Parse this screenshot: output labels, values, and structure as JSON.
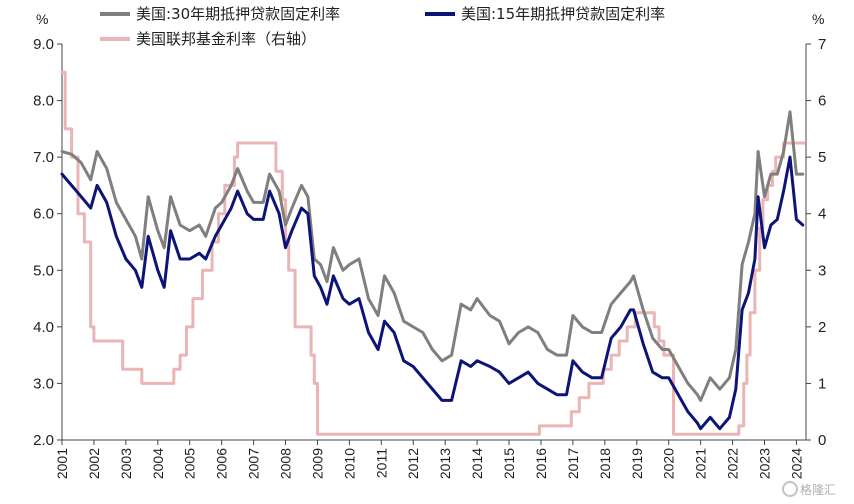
{
  "chart_data": {
    "type": "line",
    "left_unit": "%",
    "right_unit": "%",
    "y_left": {
      "min": 2.0,
      "max": 9.0,
      "ticks": [
        "2.0",
        "3.0",
        "4.0",
        "5.0",
        "6.0",
        "7.0",
        "8.0",
        "9.0"
      ]
    },
    "y_right": {
      "min": 0,
      "max": 7,
      "ticks": [
        "0",
        "1",
        "2",
        "3",
        "4",
        "5",
        "6",
        "7"
      ]
    },
    "x_range": [
      2001.0,
      2024.3
    ],
    "x_ticks": [
      "2001",
      "2002",
      "2003",
      "2004",
      "2005",
      "2006",
      "2007",
      "2008",
      "2009",
      "2010",
      "2011",
      "2012",
      "2013",
      "2014",
      "2015",
      "2016",
      "2017",
      "2018",
      "2019",
      "2020",
      "2021",
      "2022",
      "2023",
      "2024"
    ],
    "legend_placement": "top",
    "series": [
      {
        "name": "美国:30年期抵押贷款固定利率",
        "axis": "left",
        "color": "#7f7f7f",
        "points": [
          [
            2001.0,
            7.1
          ],
          [
            2001.3,
            7.05
          ],
          [
            2001.6,
            6.9
          ],
          [
            2001.9,
            6.6
          ],
          [
            2002.1,
            7.1
          ],
          [
            2002.4,
            6.8
          ],
          [
            2002.7,
            6.2
          ],
          [
            2003.0,
            5.9
          ],
          [
            2003.3,
            5.6
          ],
          [
            2003.5,
            5.2
          ],
          [
            2003.7,
            6.3
          ],
          [
            2004.0,
            5.7
          ],
          [
            2004.2,
            5.4
          ],
          [
            2004.4,
            6.3
          ],
          [
            2004.7,
            5.8
          ],
          [
            2005.0,
            5.7
          ],
          [
            2005.3,
            5.8
          ],
          [
            2005.5,
            5.6
          ],
          [
            2005.8,
            6.1
          ],
          [
            2006.0,
            6.2
          ],
          [
            2006.3,
            6.5
          ],
          [
            2006.5,
            6.8
          ],
          [
            2006.8,
            6.4
          ],
          [
            2007.0,
            6.2
          ],
          [
            2007.3,
            6.2
          ],
          [
            2007.5,
            6.7
          ],
          [
            2007.8,
            6.4
          ],
          [
            2008.0,
            5.8
          ],
          [
            2008.2,
            6.1
          ],
          [
            2008.5,
            6.5
          ],
          [
            2008.7,
            6.3
          ],
          [
            2008.9,
            5.2
          ],
          [
            2009.1,
            5.1
          ],
          [
            2009.3,
            4.8
          ],
          [
            2009.5,
            5.4
          ],
          [
            2009.8,
            5.0
          ],
          [
            2010.0,
            5.1
          ],
          [
            2010.3,
            5.2
          ],
          [
            2010.6,
            4.5
          ],
          [
            2010.9,
            4.2
          ],
          [
            2011.1,
            4.9
          ],
          [
            2011.4,
            4.6
          ],
          [
            2011.7,
            4.1
          ],
          [
            2012.0,
            4.0
          ],
          [
            2012.3,
            3.9
          ],
          [
            2012.6,
            3.6
          ],
          [
            2012.9,
            3.4
          ],
          [
            2013.2,
            3.5
          ],
          [
            2013.5,
            4.4
          ],
          [
            2013.8,
            4.3
          ],
          [
            2014.0,
            4.5
          ],
          [
            2014.4,
            4.2
          ],
          [
            2014.7,
            4.1
          ],
          [
            2015.0,
            3.7
          ],
          [
            2015.3,
            3.9
          ],
          [
            2015.6,
            4.0
          ],
          [
            2015.9,
            3.9
          ],
          [
            2016.2,
            3.6
          ],
          [
            2016.5,
            3.5
          ],
          [
            2016.8,
            3.5
          ],
          [
            2017.0,
            4.2
          ],
          [
            2017.3,
            4.0
          ],
          [
            2017.6,
            3.9
          ],
          [
            2017.9,
            3.9
          ],
          [
            2018.2,
            4.4
          ],
          [
            2018.5,
            4.6
          ],
          [
            2018.8,
            4.8
          ],
          [
            2018.9,
            4.9
          ],
          [
            2019.2,
            4.3
          ],
          [
            2019.5,
            3.8
          ],
          [
            2019.8,
            3.6
          ],
          [
            2020.0,
            3.6
          ],
          [
            2020.3,
            3.3
          ],
          [
            2020.6,
            3.0
          ],
          [
            2020.9,
            2.8
          ],
          [
            2021.0,
            2.7
          ],
          [
            2021.3,
            3.1
          ],
          [
            2021.6,
            2.9
          ],
          [
            2021.9,
            3.1
          ],
          [
            2022.1,
            3.6
          ],
          [
            2022.3,
            5.1
          ],
          [
            2022.5,
            5.5
          ],
          [
            2022.7,
            6.0
          ],
          [
            2022.8,
            7.1
          ],
          [
            2023.0,
            6.3
          ],
          [
            2023.2,
            6.7
          ],
          [
            2023.4,
            6.7
          ],
          [
            2023.6,
            7.1
          ],
          [
            2023.8,
            7.8
          ],
          [
            2024.0,
            6.7
          ],
          [
            2024.2,
            6.7
          ]
        ]
      },
      {
        "name": "美国:15年期抵押贷款固定利率",
        "axis": "left",
        "color": "#0d1478",
        "points": [
          [
            2001.0,
            6.7
          ],
          [
            2001.3,
            6.5
          ],
          [
            2001.6,
            6.3
          ],
          [
            2001.9,
            6.1
          ],
          [
            2002.1,
            6.5
          ],
          [
            2002.4,
            6.2
          ],
          [
            2002.7,
            5.6
          ],
          [
            2003.0,
            5.2
          ],
          [
            2003.3,
            5.0
          ],
          [
            2003.5,
            4.7
          ],
          [
            2003.7,
            5.6
          ],
          [
            2004.0,
            5.0
          ],
          [
            2004.2,
            4.7
          ],
          [
            2004.4,
            5.7
          ],
          [
            2004.7,
            5.2
          ],
          [
            2005.0,
            5.2
          ],
          [
            2005.3,
            5.3
          ],
          [
            2005.5,
            5.2
          ],
          [
            2005.8,
            5.6
          ],
          [
            2006.0,
            5.8
          ],
          [
            2006.3,
            6.1
          ],
          [
            2006.5,
            6.4
          ],
          [
            2006.8,
            6.0
          ],
          [
            2007.0,
            5.9
          ],
          [
            2007.3,
            5.9
          ],
          [
            2007.5,
            6.4
          ],
          [
            2007.8,
            6.0
          ],
          [
            2008.0,
            5.4
          ],
          [
            2008.2,
            5.7
          ],
          [
            2008.5,
            6.1
          ],
          [
            2008.7,
            6.0
          ],
          [
            2008.9,
            4.9
          ],
          [
            2009.1,
            4.7
          ],
          [
            2009.3,
            4.4
          ],
          [
            2009.5,
            4.9
          ],
          [
            2009.8,
            4.5
          ],
          [
            2010.0,
            4.4
          ],
          [
            2010.3,
            4.5
          ],
          [
            2010.6,
            3.9
          ],
          [
            2010.9,
            3.6
          ],
          [
            2011.1,
            4.1
          ],
          [
            2011.4,
            3.9
          ],
          [
            2011.7,
            3.4
          ],
          [
            2012.0,
            3.3
          ],
          [
            2012.3,
            3.1
          ],
          [
            2012.6,
            2.9
          ],
          [
            2012.9,
            2.7
          ],
          [
            2013.2,
            2.7
          ],
          [
            2013.5,
            3.4
          ],
          [
            2013.8,
            3.3
          ],
          [
            2014.0,
            3.4
          ],
          [
            2014.4,
            3.3
          ],
          [
            2014.7,
            3.2
          ],
          [
            2015.0,
            3.0
          ],
          [
            2015.3,
            3.1
          ],
          [
            2015.6,
            3.2
          ],
          [
            2015.9,
            3.0
          ],
          [
            2016.2,
            2.9
          ],
          [
            2016.5,
            2.8
          ],
          [
            2016.8,
            2.8
          ],
          [
            2017.0,
            3.4
          ],
          [
            2017.3,
            3.2
          ],
          [
            2017.6,
            3.1
          ],
          [
            2017.9,
            3.1
          ],
          [
            2018.2,
            3.8
          ],
          [
            2018.5,
            4.0
          ],
          [
            2018.8,
            4.3
          ],
          [
            2018.9,
            4.3
          ],
          [
            2019.2,
            3.7
          ],
          [
            2019.5,
            3.2
          ],
          [
            2019.8,
            3.1
          ],
          [
            2020.0,
            3.1
          ],
          [
            2020.3,
            2.8
          ],
          [
            2020.6,
            2.5
          ],
          [
            2020.9,
            2.3
          ],
          [
            2021.0,
            2.2
          ],
          [
            2021.3,
            2.4
          ],
          [
            2021.6,
            2.2
          ],
          [
            2021.9,
            2.4
          ],
          [
            2022.1,
            2.9
          ],
          [
            2022.3,
            4.3
          ],
          [
            2022.5,
            4.6
          ],
          [
            2022.7,
            5.2
          ],
          [
            2022.8,
            6.3
          ],
          [
            2023.0,
            5.4
          ],
          [
            2023.2,
            5.8
          ],
          [
            2023.4,
            5.9
          ],
          [
            2023.6,
            6.4
          ],
          [
            2023.8,
            7.0
          ],
          [
            2024.0,
            5.9
          ],
          [
            2024.2,
            5.8
          ]
        ]
      },
      {
        "name": "美国联邦基金利率（右轴）",
        "axis": "right",
        "color": "#eab5b4",
        "step": true,
        "points": [
          [
            2001.0,
            6.5
          ],
          [
            2001.1,
            5.5
          ],
          [
            2001.3,
            5.0
          ],
          [
            2001.5,
            4.0
          ],
          [
            2001.7,
            3.5
          ],
          [
            2001.9,
            2.0
          ],
          [
            2002.0,
            1.75
          ],
          [
            2002.9,
            1.25
          ],
          [
            2003.5,
            1.0
          ],
          [
            2004.5,
            1.25
          ],
          [
            2004.7,
            1.5
          ],
          [
            2004.9,
            2.0
          ],
          [
            2005.1,
            2.5
          ],
          [
            2005.4,
            3.0
          ],
          [
            2005.7,
            3.5
          ],
          [
            2005.9,
            4.0
          ],
          [
            2006.1,
            4.5
          ],
          [
            2006.4,
            5.0
          ],
          [
            2006.5,
            5.25
          ],
          [
            2007.7,
            4.75
          ],
          [
            2007.9,
            4.25
          ],
          [
            2008.0,
            3.5
          ],
          [
            2008.1,
            3.0
          ],
          [
            2008.3,
            2.0
          ],
          [
            2008.8,
            1.5
          ],
          [
            2008.9,
            1.0
          ],
          [
            2009.0,
            0.1
          ],
          [
            2015.95,
            0.25
          ],
          [
            2016.95,
            0.5
          ],
          [
            2017.2,
            0.75
          ],
          [
            2017.5,
            1.0
          ],
          [
            2017.95,
            1.25
          ],
          [
            2018.2,
            1.5
          ],
          [
            2018.45,
            1.75
          ],
          [
            2018.7,
            2.0
          ],
          [
            2018.95,
            2.25
          ],
          [
            2019.55,
            2.0
          ],
          [
            2019.7,
            1.75
          ],
          [
            2019.85,
            1.5
          ],
          [
            2020.15,
            0.1
          ],
          [
            2022.2,
            0.25
          ],
          [
            2022.35,
            1.0
          ],
          [
            2022.45,
            1.5
          ],
          [
            2022.55,
            2.25
          ],
          [
            2022.7,
            3.0
          ],
          [
            2022.85,
            3.75
          ],
          [
            2022.95,
            4.25
          ],
          [
            2023.1,
            4.5
          ],
          [
            2023.25,
            4.75
          ],
          [
            2023.35,
            5.0
          ],
          [
            2023.6,
            5.25
          ],
          [
            2024.25,
            5.25
          ]
        ]
      }
    ]
  },
  "watermark": "格隆汇"
}
